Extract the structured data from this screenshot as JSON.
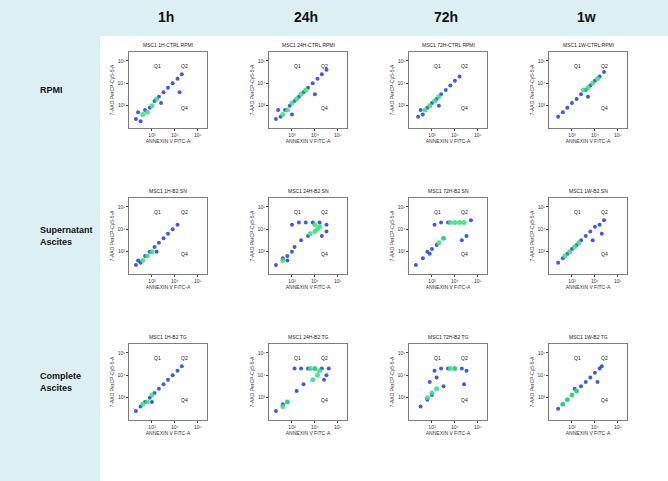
{
  "chart_data": {
    "type": "scatter",
    "log": true,
    "grid": false,
    "column_titles": [
      "1h",
      "24h",
      "72h",
      "1w"
    ],
    "row_titles": [
      "RPMI",
      "Supernatant Ascites",
      "Complete Ascites"
    ],
    "x_label": "ANNEXIN V FITC-A",
    "y_label": "7-AAD PerCP-Cy5-5-A",
    "xlim": [
      100,
      250000
    ],
    "ylim": [
      100,
      250000
    ],
    "xticks": [
      {
        "value": 1000,
        "label": "10³"
      },
      {
        "value": 10000,
        "label": "10⁴"
      },
      {
        "value": 100000,
        "label": "10⁵"
      }
    ],
    "yticks": [
      {
        "value": 1000,
        "label": "10³"
      },
      {
        "value": 10000,
        "label": "10⁴"
      },
      {
        "value": 100000,
        "label": "10⁵"
      }
    ],
    "gates": {
      "x": 6000,
      "y": 6000
    },
    "quadrant_labels": [
      "Q1",
      "Q2",
      "Q4"
    ],
    "panels": [
      {
        "title": "MSC1 1H-CTRL RPMI",
        "series": [
          {
            "color": "#1f3fd8",
            "x": [
              200,
              320,
              500,
              800,
              1300,
              2000,
              3200,
              5000,
              8000,
              13000,
              20000,
              2500,
              250,
              16000
            ],
            "y": [
              250,
              200,
              630,
              800,
              1600,
              2500,
              4000,
              6300,
              10000,
              16000,
              25000,
              1300,
              500,
              4000
            ]
          },
          {
            "color": "#2fe07a",
            "x": [
              400,
              630,
              1000,
              1600
            ],
            "y": [
              400,
              500,
              1000,
              2000
            ]
          }
        ]
      },
      {
        "title": "MSC1 24H-CTRL RPMI",
        "series": [
          {
            "color": "#1f3fd8",
            "x": [
              200,
              320,
              500,
              800,
              1300,
              2000,
              3200,
              5000,
              8000,
              13000,
              20000,
              32000,
              1000,
              10000,
              250
            ],
            "y": [
              250,
              320,
              630,
              1000,
              1600,
              2500,
              4000,
              6300,
              10000,
              16000,
              25000,
              40000,
              400,
              3200,
              630
            ]
          },
          {
            "color": "#2fe07a",
            "x": [
              400,
              630,
              1000,
              1600,
              2500,
              4000
            ],
            "y": [
              400,
              630,
              1300,
              2000,
              3200,
              5000
            ]
          }
        ]
      },
      {
        "title": "MSC1 72H-CTRL RPMI",
        "series": [
          {
            "color": "#1f3fd8",
            "x": [
              250,
              400,
              630,
              1000,
              1600,
              2500,
              4000,
              6300,
              10000,
              16000,
              2000,
              320
            ],
            "y": [
              320,
              400,
              800,
              1300,
              2000,
              3200,
              5000,
              8000,
              13000,
              20000,
              1000,
              630
            ]
          },
          {
            "color": "#2fe07a",
            "x": [
              500,
              800,
              1300,
              2000
            ],
            "y": [
              630,
              1000,
              1600,
              2500
            ]
          }
        ]
      },
      {
        "title": "MSC1 1W-CTRL RPMI",
        "series": [
          {
            "color": "#1f3fd8",
            "x": [
              250,
              400,
              630,
              1000,
              1600,
              2500,
              4000,
              6300,
              10000,
              16000,
              25000,
              5000
            ],
            "y": [
              320,
              500,
              800,
              1300,
              2000,
              3200,
              5000,
              8000,
              13000,
              20000,
              32000,
              2500
            ]
          },
          {
            "color": "#2fe07a",
            "x": [
              3200,
              5000,
              8000,
              13000
            ],
            "y": [
              5000,
              6300,
              10000,
              16000
            ]
          }
        ]
      },
      {
        "title": "MSC1 1H-B2 SN",
        "series": [
          {
            "color": "#1f3fd8",
            "x": [
              200,
              320,
              500,
              800,
              1300,
              2000,
              3200,
              5000,
              8000,
              13000,
              1600,
              250
            ],
            "y": [
              250,
              320,
              630,
              1000,
              1600,
              2500,
              4000,
              6300,
              10000,
              16000,
              1000,
              400
            ]
          },
          {
            "color": "#2fe07a",
            "x": [
              400,
              630,
              1000
            ],
            "y": [
              400,
              630,
              1000
            ]
          }
        ]
      },
      {
        "title": "MSC1 24H-B2 SN",
        "series": [
          {
            "color": "#1f3fd8",
            "x": [
              200,
              400,
              630,
              1000,
              2000,
              4000,
              8000,
              16000,
              32000,
              1300,
              2500,
              5000,
              20000,
              32000,
              630,
              1000
            ],
            "y": [
              250,
              500,
              630,
              16000,
              20000,
              20000,
              20000,
              20000,
              16000,
              1600,
              3200,
              5000,
              5000,
              8000,
              400,
              1000
            ]
          },
          {
            "color": "#2fe07a",
            "x": [
              400,
              6300,
              10000,
              13000,
              16000,
              10000
            ],
            "y": [
              400,
              6300,
              8000,
              10000,
              13000,
              16000
            ]
          }
        ]
      },
      {
        "title": "MSC1 72H-B2 SN",
        "series": [
          {
            "color": "#1f3fd8",
            "x": [
              200,
              400,
              800,
              1300,
              2500,
              5000,
              1600,
              3200,
              50000,
              32000,
              630,
              1000,
              20000
            ],
            "y": [
              250,
              500,
              800,
              16000,
              20000,
              20000,
              2000,
              4000,
              25000,
              5000,
              1000,
              1300,
              3200
            ]
          },
          {
            "color": "#2fe07a",
            "x": [
              6300,
              10000,
              16000,
              25000,
              2000,
              3200
            ],
            "y": [
              20000,
              20000,
              20000,
              20000,
              2500,
              4000
            ]
          }
        ]
      },
      {
        "title": "MSC1 1W-B2 SN",
        "series": [
          {
            "color": "#1f3fd8",
            "x": [
              250,
              400,
              630,
              1000,
              1600,
              2500,
              4000,
              6300,
              10000,
              16000,
              25000,
              8000,
              20000
            ],
            "y": [
              320,
              500,
              800,
              1300,
              2000,
              3200,
              5000,
              8000,
              13000,
              16000,
              25000,
              3200,
              6300
            ]
          },
          {
            "color": "#2fe07a",
            "x": [
              500,
              800,
              1300,
              2000
            ],
            "y": [
              630,
              1000,
              1600,
              2500
            ]
          }
        ]
      },
      {
        "title": "MSC1 1H-B2 TG",
        "series": [
          {
            "color": "#1f3fd8",
            "x": [
              200,
              320,
              500,
              800,
              1300,
              2000,
              3200,
              5000,
              8000,
              13000,
              20000,
              1000
            ],
            "y": [
              250,
              400,
              630,
              1000,
              1600,
              2500,
              4000,
              6300,
              10000,
              16000,
              25000,
              630
            ]
          },
          {
            "color": "#2fe07a",
            "x": [
              400,
              630,
              1000
            ],
            "y": [
              500,
              630,
              1300
            ]
          }
        ]
      },
      {
        "title": "MSC1 24H-B2 TG",
        "series": [
          {
            "color": "#1f3fd8",
            "x": [
              200,
              400,
              630,
              1300,
              2500,
              5000,
              10000,
              20000,
              40000,
              1600,
              3200,
              25000,
              32000
            ],
            "y": [
              250,
              500,
              630,
              20000,
              20000,
              20000,
              20000,
              20000,
              20000,
              2000,
              4000,
              6300,
              10000
            ]
          },
          {
            "color": "#2fe07a",
            "x": [
              400,
              630,
              8000,
              13000,
              16000,
              6300,
              10000
            ],
            "y": [
              400,
              630,
              6300,
              10000,
              16000,
              20000,
              20000
            ]
          }
        ]
      },
      {
        "title": "MSC1 72H-B2 TG",
        "series": [
          {
            "color": "#1f3fd8",
            "x": [
              320,
              630,
              1000,
              1300,
              2500,
              5000,
              10000,
              20000,
              32000,
              800,
              1600,
              3200,
              25000
            ],
            "y": [
              400,
              800,
              1300,
              16000,
              20000,
              20000,
              20000,
              20000,
              16000,
              5000,
              8000,
              3200,
              4000
            ]
          },
          {
            "color": "#2fe07a",
            "x": [
              630,
              1000,
              1600,
              6300,
              10000
            ],
            "y": [
              1000,
              1600,
              2500,
              20000,
              20000
            ]
          }
        ]
      },
      {
        "title": "MSC1 1W-B2 TG",
        "series": [
          {
            "color": "#1f3fd8",
            "x": [
              250,
              400,
              630,
              1000,
              1600,
              2500,
              4000,
              6300,
              10000,
              16000,
              20000,
              1300,
              13000
            ],
            "y": [
              320,
              500,
              800,
              1300,
              2000,
              3200,
              5000,
              8000,
              13000,
              20000,
              25000,
              2500,
              5000
            ]
          },
          {
            "color": "#2fe07a",
            "x": [
              400,
              630,
              1000,
              1600
            ],
            "y": [
              500,
              800,
              1300,
              2000
            ]
          }
        ]
      }
    ]
  }
}
